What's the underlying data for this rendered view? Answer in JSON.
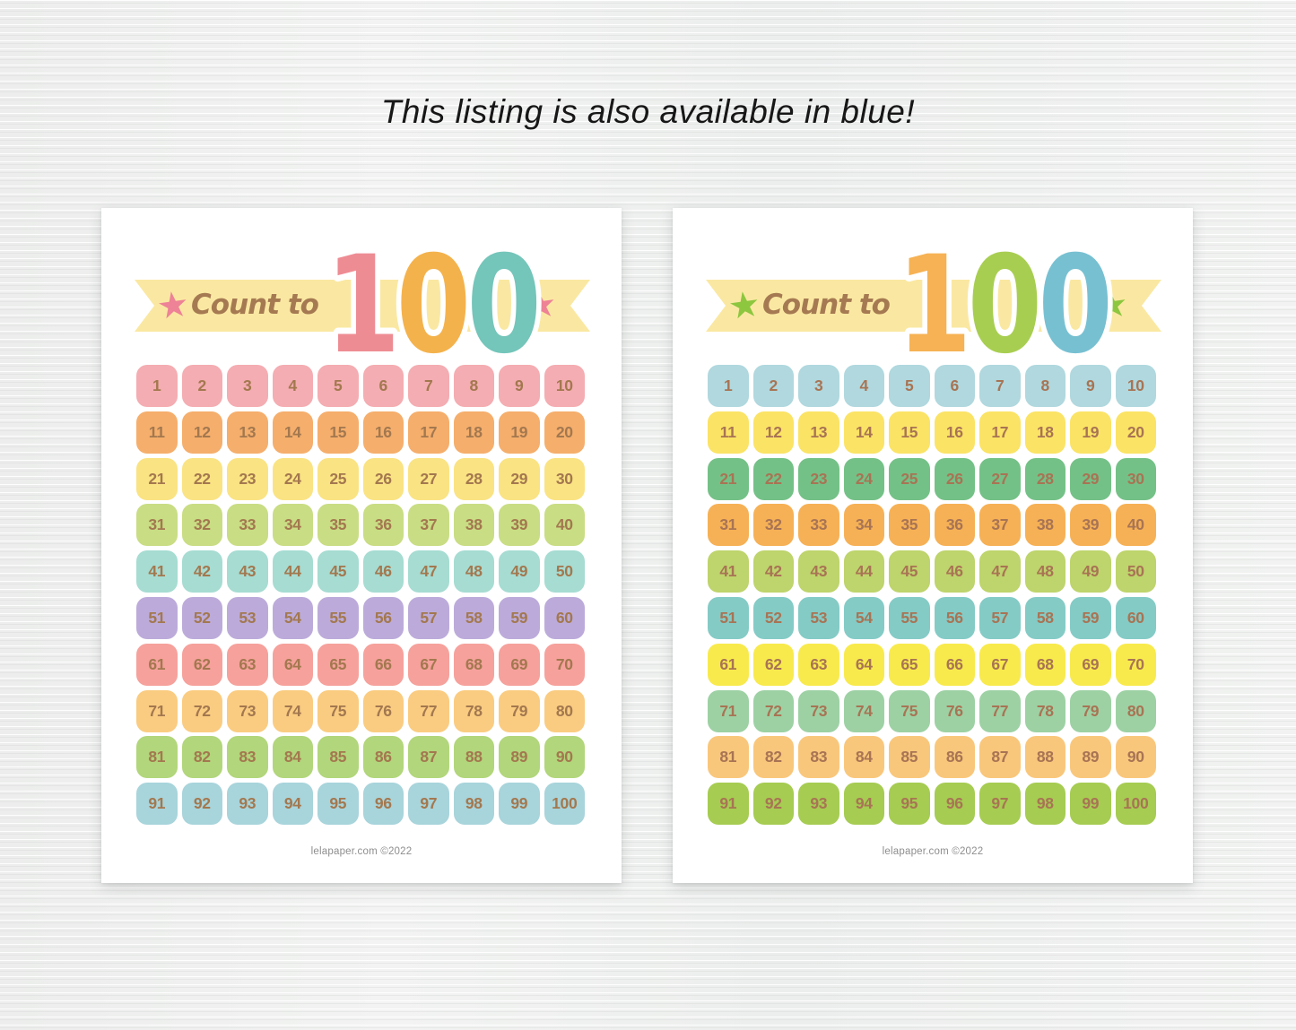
{
  "header": {
    "title": "This listing is also available in blue!"
  },
  "grid": {
    "rows": 10,
    "cols": 10,
    "numbers": [
      1,
      2,
      3,
      4,
      5,
      6,
      7,
      8,
      9,
      10,
      11,
      12,
      13,
      14,
      15,
      16,
      17,
      18,
      19,
      20,
      21,
      22,
      23,
      24,
      25,
      26,
      27,
      28,
      29,
      30,
      31,
      32,
      33,
      34,
      35,
      36,
      37,
      38,
      39,
      40,
      41,
      42,
      43,
      44,
      45,
      46,
      47,
      48,
      49,
      50,
      51,
      52,
      53,
      54,
      55,
      56,
      57,
      58,
      59,
      60,
      61,
      62,
      63,
      64,
      65,
      66,
      67,
      68,
      69,
      70,
      71,
      72,
      73,
      74,
      75,
      76,
      77,
      78,
      79,
      80,
      81,
      82,
      83,
      84,
      85,
      86,
      87,
      88,
      89,
      90,
      91,
      92,
      93,
      94,
      95,
      96,
      97,
      98,
      99,
      100
    ]
  },
  "posters": [
    {
      "variant": "pastel-rainbow",
      "banner": {
        "label": "Count to",
        "label_color": "#A57A52",
        "ribbon_color": "#FAE8A2",
        "star_icon": "★",
        "star_color": "#EE8296",
        "digits": [
          "1",
          "0",
          "0"
        ],
        "digit_colors": [
          "#EE8C94",
          "#F4B24C",
          "#74C5BA"
        ]
      },
      "number_color": "#A3784F",
      "row_colors": [
        "#F4ADB2",
        "#F5AE6C",
        "#FAE383",
        "#C9DD84",
        "#A6DCD2",
        "#BCABDA",
        "#F6A19C",
        "#FACC81",
        "#B2D67B",
        "#A8D4DB"
      ],
      "footer": "lelapaper.com ©2022"
    },
    {
      "variant": "green-blue",
      "banner": {
        "label": "Count to",
        "label_color": "#A57A52",
        "ribbon_color": "#FAE8A2",
        "star_icon": "★",
        "star_color": "#8DC63F",
        "digits": [
          "1",
          "0",
          "0"
        ],
        "digit_colors": [
          "#F6B254",
          "#A8CE51",
          "#77C0D2"
        ]
      },
      "number_color": "#A87454",
      "row_colors": [
        "#B0D8DE",
        "#FBE365",
        "#74C187",
        "#F6B156",
        "#BED46C",
        "#84CBC6",
        "#F8EA4D",
        "#9DD1A4",
        "#F9C77B",
        "#A6CC52"
      ],
      "footer": "lelapaper.com ©2022"
    }
  ]
}
